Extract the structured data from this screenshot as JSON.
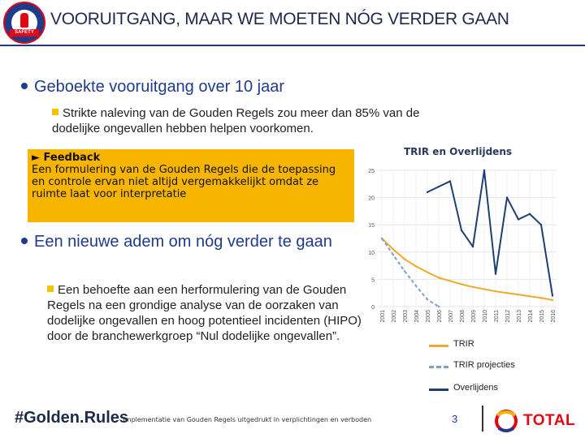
{
  "header": {
    "title": "VOORUITGANG, MAAR WE MOETEN NÓG VERDER GAAN",
    "logo_text": "SAFETY"
  },
  "content": {
    "bullet1": "Geboekte vooruitgang over 10 jaar",
    "sub1": "Strikte naleving van de Gouden Regels zou meer dan 85% van de dodelijke ongevallen hebben helpen voorkomen.",
    "feedback_title": "► Feedback",
    "feedback_body": "Een formulering van de Gouden Regels die de toepassing en controle ervan niet altijd vergemakkelijkt omdat ze ruimte laat voor interpretatie",
    "bullet2": "Een nieuwe adem om nóg verder te gaan",
    "sub2": "Een behoefte aan een herformulering van de Gouden Regels na een grondige analyse van de oorzaken van dodelijke ongevallen en hoog potentieel incidenten (HIPO) door de branchewerkgroep “Nul dodelijke ongevallen”."
  },
  "chart_data": {
    "type": "line",
    "title": "TRIR en Overlijdens",
    "x": [
      "2001",
      "2002",
      "2003",
      "2004",
      "2005",
      "2006",
      "2007",
      "2008",
      "2009",
      "2010",
      "2011",
      "2012",
      "2013",
      "2014",
      "2015",
      "2016"
    ],
    "ylim": [
      0,
      25
    ],
    "yticks": [
      0,
      5,
      10,
      15,
      20,
      25
    ],
    "grid": true,
    "legend": "bottom-right",
    "series": [
      {
        "name": "TRIR",
        "color": "#f0a830",
        "style": "solid",
        "values": [
          12.5,
          10.5,
          8.7,
          7.4,
          6.3,
          5.3,
          4.7,
          4.1,
          3.6,
          3.2,
          2.8,
          2.5,
          2.2,
          1.9,
          1.6,
          1.2
        ]
      },
      {
        "name": "TRIR projecties",
        "color": "#7fa2c8",
        "style": "dashed",
        "values": [
          12.5,
          9.5,
          6.5,
          3.8,
          1.3,
          0,
          null,
          null,
          null,
          null,
          null,
          null,
          null,
          null,
          null,
          null
        ]
      },
      {
        "name": "Overlijdens",
        "color": "#1f3f73",
        "style": "solid",
        "values": [
          null,
          null,
          null,
          null,
          21,
          22,
          23,
          14,
          11,
          25,
          6,
          20,
          16,
          17,
          15,
          2
        ]
      }
    ]
  },
  "footer": {
    "tag": "#Golden.Rules",
    "note": "- Implementatie van Gouden Regels uitgedrukt in verplichtingen en verboden",
    "page_number": "3",
    "brand": "TOTAL"
  }
}
